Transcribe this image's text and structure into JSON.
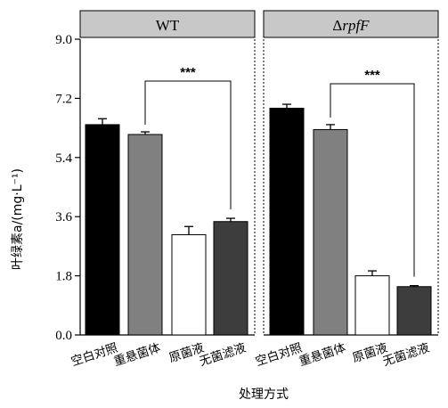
{
  "chart_data": {
    "type": "bar",
    "ylabel": "叶绿素a/(mg·L⁻¹)",
    "xlabel": "处理方式",
    "ylim": [
      0,
      9.0
    ],
    "yticks": [
      "0.0",
      "1.8",
      "3.6",
      "5.4",
      "7.2",
      "9.0"
    ],
    "categories": [
      "空白对照",
      "重悬菌体",
      "原菌液",
      "无菌滤液"
    ],
    "colors": [
      "#000000",
      "#808080",
      "#ffffff",
      "#3d3d3d"
    ],
    "panels": [
      {
        "title_prefix": "",
        "title_italic": "",
        "title": "WT",
        "values": [
          6.4,
          6.1,
          3.05,
          3.45
        ],
        "errors": [
          0.18,
          0.08,
          0.25,
          0.1
        ],
        "significance": {
          "from": 1,
          "to": 3,
          "label": "***"
        }
      },
      {
        "title_prefix": "Δ",
        "title_italic": "rpfF",
        "title": "",
        "values": [
          6.9,
          6.25,
          1.8,
          1.47
        ],
        "errors": [
          0.12,
          0.15,
          0.15,
          0.03
        ],
        "significance": {
          "from": 1,
          "to": 3,
          "label": "***"
        }
      }
    ]
  }
}
